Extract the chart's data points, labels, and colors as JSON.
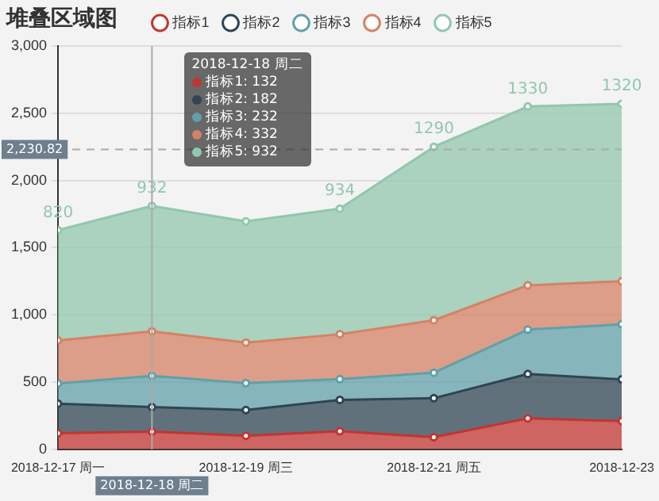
{
  "chart_data": {
    "type": "area",
    "title": "堆叠区域图",
    "stacked": true,
    "x": [
      "2018-12-17",
      "2018-12-18",
      "2018-12-19",
      "2018-12-20",
      "2018-12-21",
      "2018-12-22",
      "2018-12-23"
    ],
    "series": [
      {
        "name": "指标1",
        "color": "#c23531",
        "values": [
          120,
          132,
          101,
          134,
          90,
          230,
          210
        ]
      },
      {
        "name": "指标2",
        "color": "#2f4554",
        "values": [
          220,
          182,
          191,
          234,
          290,
          330,
          310
        ]
      },
      {
        "name": "指标3",
        "color": "#61a0a8",
        "values": [
          150,
          232,
          201,
          154,
          190,
          330,
          410
        ]
      },
      {
        "name": "指标4",
        "color": "#d48265",
        "values": [
          320,
          332,
          301,
          334,
          390,
          330,
          320
        ]
      },
      {
        "name": "指标5",
        "color": "#91c7ae",
        "values": [
          820,
          932,
          901,
          934,
          1290,
          1330,
          1320
        ],
        "value_labels": [
          "820",
          "932",
          null,
          "934",
          "1290",
          "1330",
          "1320"
        ]
      }
    ],
    "xlim": [
      "2018-12-17",
      "2018-12-23"
    ],
    "xticks": [
      {
        "value": "2018-12-17",
        "label": "2018-12-17 周一"
      },
      {
        "value": "2018-12-19",
        "label": "2018-12-19 周三"
      },
      {
        "value": "2018-12-21",
        "label": "2018-12-21 周五"
      },
      {
        "value": "2018-12-23",
        "label": "2018-12-23"
      }
    ],
    "ylim": [
      0,
      3000
    ],
    "yticks": [
      {
        "value": 0,
        "label": "0"
      },
      {
        "value": 500,
        "label": "500"
      },
      {
        "value": 1000,
        "label": "1,000"
      },
      {
        "value": 1500,
        "label": "1,500"
      },
      {
        "value": 2000,
        "label": "2,000"
      },
      {
        "value": 2500,
        "label": "2,500"
      },
      {
        "value": 3000,
        "label": "3,000"
      }
    ],
    "ref_lines": [
      {
        "axis": "x",
        "value": "2018-12-18",
        "label": "2018-12-18 周二",
        "color": "#aaaaaa"
      },
      {
        "axis": "y",
        "value": 2230.82,
        "label": "2,230.82",
        "color": "#aaaaaa",
        "line_style": "dashed"
      }
    ],
    "annotations": [
      "2018-12-18 周二",
      "指标1: 132",
      "指标2: 182",
      "指标3: 232",
      "指标4: 332",
      "指标5: 932"
    ],
    "grid": "y",
    "legend": "top",
    "marker": "circle",
    "line_style": "solid"
  }
}
